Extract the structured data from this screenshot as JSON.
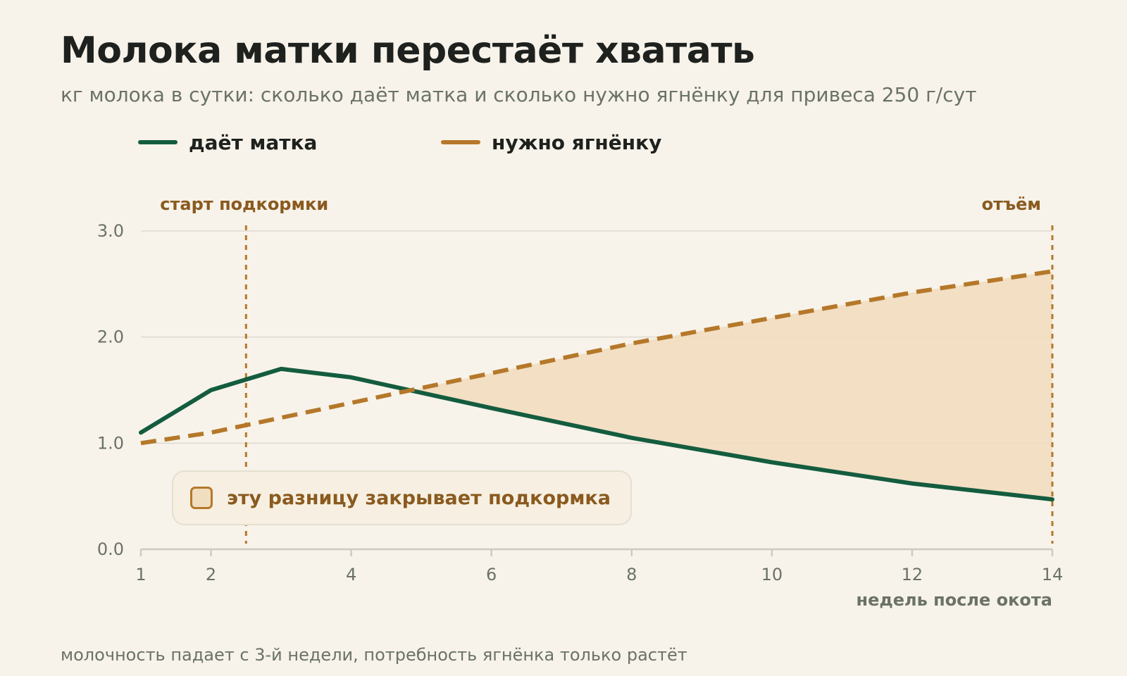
{
  "title": "Молока матки перестаёт хватать",
  "subtitle": "кг молока в сутки: сколько даёт матка и сколько нужно ягнёнку для привеса 250 г/сут",
  "legend": [
    {
      "label": "даёт матка",
      "color": "#145c3f"
    },
    {
      "label": "нужно ягнёнку",
      "color": "#b5782a"
    }
  ],
  "colors": {
    "gap_fill": "#f1ddc0",
    "grid": "#ddd9cf",
    "axis": "#cfcabe"
  },
  "chart_data": {
    "type": "line",
    "xlabel": "недель после окота",
    "ylabel": "",
    "xlim": [
      1,
      14
    ],
    "ylim": [
      0,
      3
    ],
    "x_ticks": [
      1,
      2,
      4,
      6,
      8,
      10,
      12,
      14
    ],
    "y_ticks": [
      "0.0",
      "1.0",
      "2.0",
      "3.0"
    ],
    "grid": true,
    "legend_position": "top-left",
    "series": [
      {
        "name": "даёт матка",
        "style": "solid",
        "x": [
          1,
          2,
          3,
          4,
          6,
          8,
          10,
          12,
          14
        ],
        "values": [
          1.1,
          1.5,
          1.7,
          1.62,
          1.33,
          1.05,
          0.82,
          0.62,
          0.47
        ]
      },
      {
        "name": "нужно ягнёнку",
        "style": "dashed",
        "x": [
          1,
          2,
          3,
          4,
          6,
          8,
          10,
          12,
          14
        ],
        "values": [
          1.0,
          1.1,
          1.24,
          1.38,
          1.66,
          1.94,
          2.18,
          2.42,
          2.62
        ]
      }
    ],
    "markers": [
      {
        "x": 2.5,
        "label": "старт подкормки"
      },
      {
        "x": 14,
        "label": "отъём"
      }
    ],
    "shaded_gap_label": "эту разницу закрывает подкормка"
  },
  "footnote": "молочность падает с 3-й недели, потребность ягнёнка только растёт"
}
